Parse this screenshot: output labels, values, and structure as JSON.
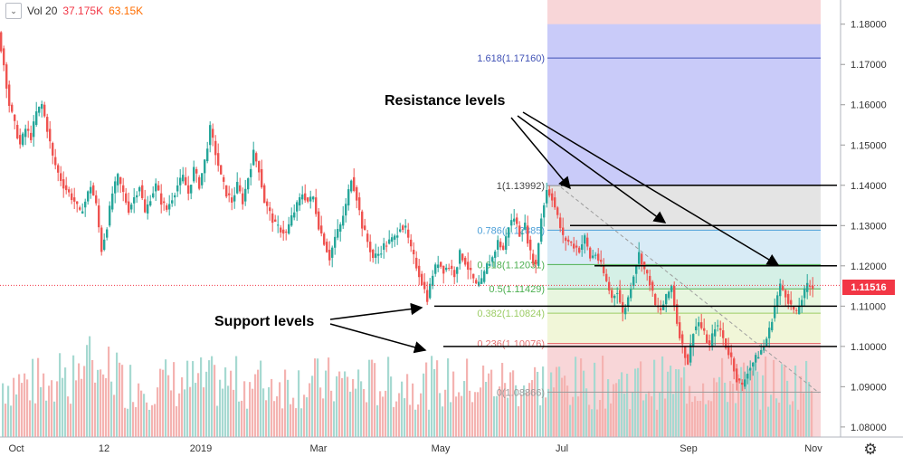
{
  "legend": {
    "name": "Vol 20",
    "value_a": "37.175K",
    "value_b": "63.15K"
  },
  "last_price": "1.11516",
  "colors": {
    "up": "#26a69a",
    "down": "#ef5350",
    "fib_top": "#9ea0f5",
    "line": "#000000",
    "price_tag": "#f23645"
  },
  "icons": {
    "chevron": "chevron-down-icon",
    "settings": "gear-icon"
  },
  "chart_data": {
    "type": "candlestick",
    "x_ticks": [
      "Oct",
      "12",
      "2019",
      "Mar",
      "May",
      "Jul",
      "Sep",
      "Nov"
    ],
    "y_ticks": [
      "1.18000",
      "1.17000",
      "1.16000",
      "1.15000",
      "1.14000",
      "1.13000",
      "1.12000",
      "1.11000",
      "1.10000",
      "1.09000",
      "1.08000"
    ],
    "ylim": [
      1.0775,
      1.186
    ],
    "fib_levels": [
      {
        "label": "1.618(1.17160)",
        "value": 1.1716
      },
      {
        "label": "1(1.13992)",
        "value": 1.13992
      },
      {
        "label": "0.786(1.12885)",
        "value": 1.12885
      },
      {
        "label": "0.618(1.12031)",
        "value": 1.12031
      },
      {
        "label": "0.5(1.11429)",
        "value": 1.11429
      },
      {
        "label": "0.382(1.10824)",
        "value": 1.10824
      },
      {
        "label": "0.236(1.10076)",
        "value": 1.10076
      },
      {
        "label": "0(1.08866)",
        "value": 1.08866
      }
    ],
    "horizontal_levels": [
      1.14,
      1.13,
      1.12,
      1.11,
      1.1
    ],
    "annotations": [
      "Resistance levels",
      "Support levels"
    ],
    "price_path": [
      [
        0,
        1.178
      ],
      [
        6,
        1.17
      ],
      [
        12,
        1.16
      ],
      [
        18,
        1.155
      ],
      [
        24,
        1.15
      ],
      [
        30,
        1.154
      ],
      [
        36,
        1.152
      ],
      [
        42,
        1.158
      ],
      [
        48,
        1.16
      ],
      [
        54,
        1.154
      ],
      [
        60,
        1.147
      ],
      [
        66,
        1.143
      ],
      [
        72,
        1.14
      ],
      [
        78,
        1.138
      ],
      [
        84,
        1.136
      ],
      [
        90,
        1.133
      ],
      [
        96,
        1.136
      ],
      [
        102,
        1.14
      ],
      [
        108,
        1.135
      ],
      [
        114,
        1.124
      ],
      [
        120,
        1.13
      ],
      [
        126,
        1.138
      ],
      [
        132,
        1.142
      ],
      [
        138,
        1.138
      ],
      [
        144,
        1.134
      ],
      [
        150,
        1.137
      ],
      [
        156,
        1.14
      ],
      [
        162,
        1.133
      ],
      [
        168,
        1.137
      ],
      [
        174,
        1.14
      ],
      [
        180,
        1.136
      ],
      [
        186,
        1.134
      ],
      [
        192,
        1.137
      ],
      [
        198,
        1.14
      ],
      [
        204,
        1.142
      ],
      [
        210,
        1.138
      ],
      [
        216,
        1.144
      ],
      [
        222,
        1.14
      ],
      [
        228,
        1.146
      ],
      [
        234,
        1.154
      ],
      [
        240,
        1.148
      ],
      [
        246,
        1.142
      ],
      [
        252,
        1.138
      ],
      [
        258,
        1.136
      ],
      [
        264,
        1.14
      ],
      [
        270,
        1.136
      ],
      [
        276,
        1.142
      ],
      [
        282,
        1.148
      ],
      [
        288,
        1.144
      ],
      [
        294,
        1.136
      ],
      [
        300,
        1.133
      ],
      [
        306,
        1.13
      ],
      [
        312,
        1.129
      ],
      [
        318,
        1.128
      ],
      [
        324,
        1.132
      ],
      [
        330,
        1.135
      ],
      [
        336,
        1.138
      ],
      [
        342,
        1.136
      ],
      [
        348,
        1.137
      ],
      [
        354,
        1.13
      ],
      [
        360,
        1.126
      ],
      [
        366,
        1.122
      ],
      [
        372,
        1.127
      ],
      [
        378,
        1.13
      ],
      [
        384,
        1.135
      ],
      [
        390,
        1.142
      ],
      [
        396,
        1.137
      ],
      [
        402,
        1.13
      ],
      [
        408,
        1.126
      ],
      [
        414,
        1.122
      ],
      [
        420,
        1.123
      ],
      [
        426,
        1.125
      ],
      [
        432,
        1.126
      ],
      [
        438,
        1.127
      ],
      [
        444,
        1.13
      ],
      [
        450,
        1.129
      ],
      [
        456,
        1.124
      ],
      [
        462,
        1.12
      ],
      [
        468,
        1.116
      ],
      [
        474,
        1.112
      ],
      [
        480,
        1.118
      ],
      [
        486,
        1.121
      ],
      [
        492,
        1.119
      ],
      [
        498,
        1.12
      ],
      [
        504,
        1.118
      ],
      [
        510,
        1.123
      ],
      [
        516,
        1.121
      ],
      [
        522,
        1.118
      ],
      [
        528,
        1.115
      ],
      [
        534,
        1.116
      ],
      [
        540,
        1.12
      ],
      [
        546,
        1.122
      ],
      [
        552,
        1.126
      ],
      [
        558,
        1.124
      ],
      [
        564,
        1.13
      ],
      [
        570,
        1.132
      ],
      [
        576,
        1.128
      ],
      [
        582,
        1.13
      ],
      [
        588,
        1.123
      ],
      [
        594,
        1.12
      ],
      [
        600,
        1.132
      ],
      [
        606,
        1.139
      ],
      [
        612,
        1.137
      ],
      [
        618,
        1.132
      ],
      [
        624,
        1.127
      ],
      [
        630,
        1.126
      ],
      [
        636,
        1.125
      ],
      [
        642,
        1.124
      ],
      [
        648,
        1.127
      ],
      [
        654,
        1.122
      ],
      [
        660,
        1.123
      ],
      [
        666,
        1.12
      ],
      [
        672,
        1.116
      ],
      [
        678,
        1.112
      ],
      [
        684,
        1.114
      ],
      [
        690,
        1.108
      ],
      [
        696,
        1.112
      ],
      [
        702,
        1.118
      ],
      [
        708,
        1.123
      ],
      [
        714,
        1.119
      ],
      [
        720,
        1.116
      ],
      [
        726,
        1.11
      ],
      [
        732,
        1.109
      ],
      [
        738,
        1.112
      ],
      [
        744,
        1.115
      ],
      [
        750,
        1.106
      ],
      [
        756,
        1.1
      ],
      [
        762,
        1.096
      ],
      [
        768,
        1.104
      ],
      [
        774,
        1.106
      ],
      [
        780,
        1.103
      ],
      [
        786,
        1.1
      ],
      [
        792,
        1.105
      ],
      [
        798,
        1.104
      ],
      [
        804,
        1.1
      ],
      [
        810,
        1.097
      ],
      [
        816,
        1.092
      ],
      [
        822,
        1.09
      ],
      [
        828,
        1.094
      ],
      [
        834,
        1.096
      ],
      [
        840,
        1.098
      ],
      [
        846,
        1.1
      ],
      [
        852,
        1.104
      ],
      [
        858,
        1.11
      ],
      [
        864,
        1.115
      ],
      [
        870,
        1.113
      ],
      [
        876,
        1.11
      ],
      [
        882,
        1.108
      ],
      [
        888,
        1.112
      ],
      [
        894,
        1.115
      ],
      [
        900,
        1.1151
      ]
    ]
  }
}
